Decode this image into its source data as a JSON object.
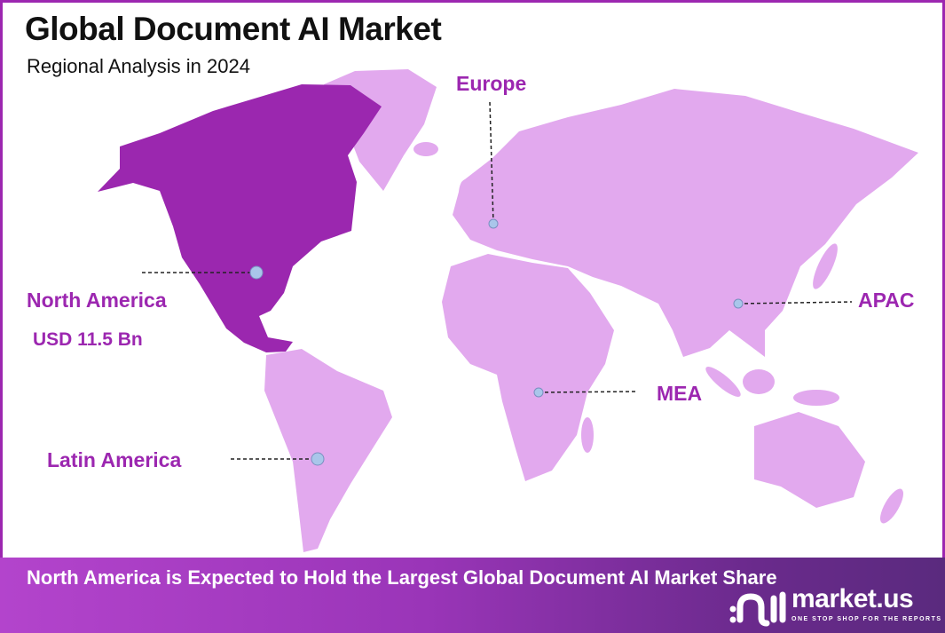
{
  "header": {
    "title": "Global Document AI Market",
    "subtitle": "Regional Analysis in 2024"
  },
  "map": {
    "highlight_region": "North America",
    "colors": {
      "highlight": "#9b27af",
      "land": "#e2a9ee",
      "label": "#9c27b0",
      "marker": "#a9c6ea"
    },
    "regions": [
      {
        "name": "North America",
        "value": "USD 11.5 Bn"
      },
      {
        "name": "Europe"
      },
      {
        "name": "APAC"
      },
      {
        "name": "MEA"
      },
      {
        "name": "Latin America"
      }
    ]
  },
  "banner": {
    "text": "North America is Expected to Hold the Largest Global Document AI Market Share"
  },
  "logo": {
    "name": "market.us",
    "tagline": "ONE STOP SHOP FOR THE REPORTS"
  }
}
